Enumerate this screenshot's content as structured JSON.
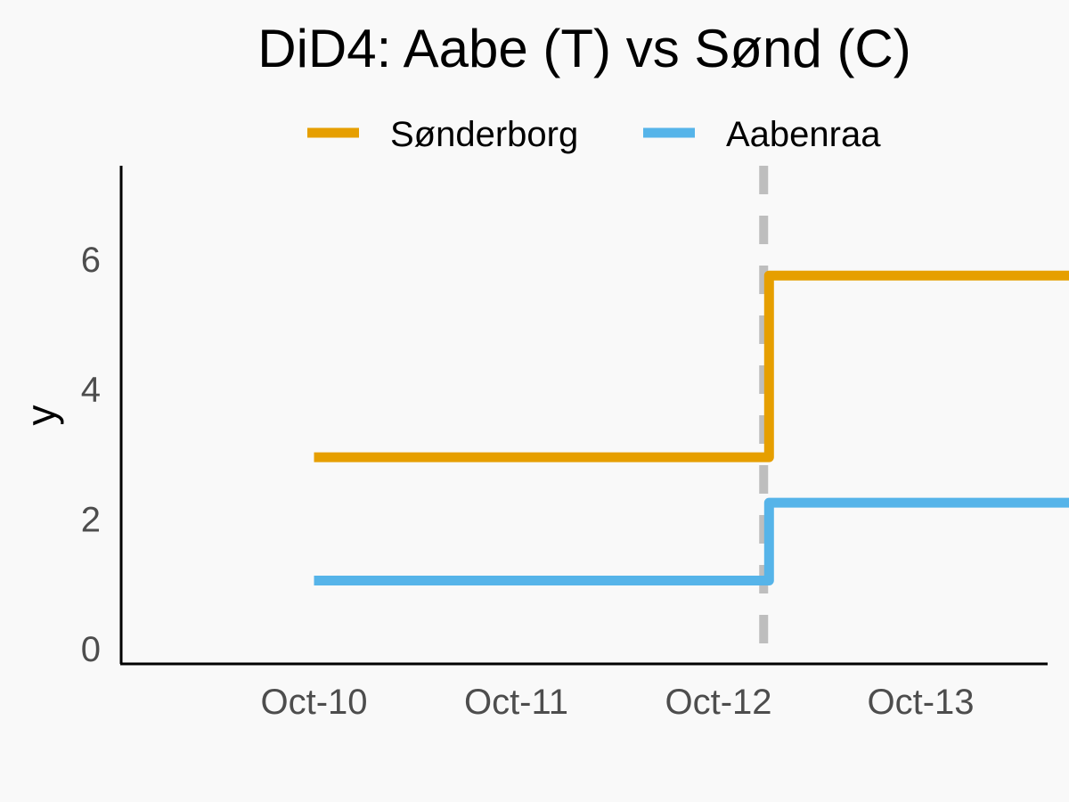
{
  "chart_data": {
    "type": "line",
    "subtype": "step",
    "title": "DiD4: Aabe (T) vs Sønd (C)",
    "xlabel": "",
    "ylabel": "y",
    "x_ticks": [
      "Oct-10",
      "Oct-11",
      "Oct-12",
      "Oct-13"
    ],
    "xlim": [
      "2023-10-09",
      "2023-10-13"
    ],
    "ylim": [
      0,
      7.2
    ],
    "y_ticks": [
      0,
      2,
      4,
      6
    ],
    "treatment_marker": {
      "x": "2023-10-11 18:00",
      "style": "dashed",
      "color": "#bebebe"
    },
    "grid": false,
    "legend_position": "top",
    "series": [
      {
        "name": "Sønderborg",
        "color": "#E69F00",
        "points": [
          {
            "x": "2023-10-09 12:00",
            "y": 2.95
          },
          {
            "x": "2023-10-11 18:00",
            "y": 2.95
          },
          {
            "x": "2023-10-11 18:00",
            "y": 5.75
          },
          {
            "x": "2023-10-13 12:00",
            "y": 5.75
          }
        ]
      },
      {
        "name": "Aabenraa",
        "color": "#56B4E9",
        "points": [
          {
            "x": "2023-10-09 12:00",
            "y": 1.05
          },
          {
            "x": "2023-10-11 18:00",
            "y": 1.05
          },
          {
            "x": "2023-10-11 18:00",
            "y": 2.25
          },
          {
            "x": "2023-10-13 12:00",
            "y": 2.25
          }
        ]
      }
    ]
  }
}
